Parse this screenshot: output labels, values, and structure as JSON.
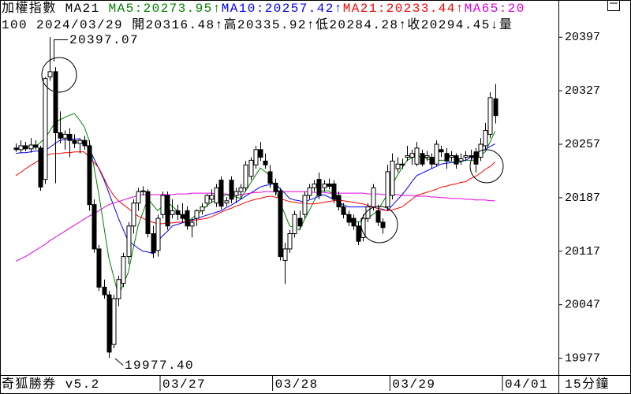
{
  "header": {
    "name": "加權指數",
    "ma_label": "MA21",
    "ma": [
      {
        "label": "MA5:20273.95",
        "arrow": "↑"
      },
      {
        "label": "MA10:20257.42",
        "arrow": "↑"
      },
      {
        "label": "MA21:20233.44",
        "arrow": "↑"
      },
      {
        "label": "MA65:20"
      }
    ],
    "quote": [
      "100",
      "2024/03/29",
      "開20316.48",
      "↑",
      "高20335.92",
      "↑",
      "低20284.28",
      "↑",
      "收20294.45",
      "↓",
      "量"
    ]
  },
  "footer": {
    "brand": "奇狐勝券 v5.2",
    "period": "15分鐘"
  },
  "chart_data": {
    "type": "candlestick",
    "categories": [
      null,
      null,
      null,
      null,
      null,
      null,
      null,
      null,
      null,
      null,
      null,
      null,
      null,
      null,
      null,
      null,
      null,
      null,
      null,
      null,
      null,
      null,
      null,
      null,
      null,
      null,
      null,
      null,
      null,
      null,
      "03/27",
      null,
      null,
      null,
      null,
      null,
      null,
      null,
      null,
      null,
      null,
      null,
      null,
      null,
      null,
      null,
      null,
      null,
      null,
      null,
      null,
      null,
      null,
      "03/28",
      null,
      null,
      null,
      null,
      null,
      null,
      null,
      null,
      null,
      null,
      null,
      null,
      null,
      null,
      null,
      null,
      null,
      null,
      null,
      null,
      null,
      null,
      null,
      "03/29",
      null,
      null,
      null,
      null,
      null,
      null,
      null,
      null,
      null,
      null,
      null,
      null,
      null,
      null,
      null,
      null,
      null,
      null,
      null,
      null,
      null,
      null,
      "04/01"
    ],
    "candles": [
      [
        20252,
        20258,
        20247,
        20250
      ],
      [
        20250,
        20262,
        20245,
        20255
      ],
      [
        20255,
        20260,
        20248,
        20251
      ],
      [
        20251,
        20265,
        20246,
        20256
      ],
      [
        20256,
        20262,
        20250,
        20253
      ],
      [
        20252,
        20255,
        20196,
        20201
      ],
      [
        20211,
        20345,
        20205,
        20343
      ],
      [
        20345,
        20397.07,
        20340,
        20352
      ],
      [
        20352,
        20358,
        20206,
        20272
      ],
      [
        20272,
        20300,
        20258,
        20265
      ],
      [
        20265,
        20275,
        20250,
        20270
      ],
      [
        20270,
        20278,
        20240,
        20262
      ],
      [
        20262,
        20270,
        20252,
        20258
      ],
      [
        20258,
        20265,
        20245,
        20262
      ],
      [
        20262,
        20268,
        20250,
        20255
      ],
      [
        20255,
        20262,
        20170,
        20178
      ],
      [
        20178,
        20185,
        20115,
        20120
      ],
      [
        20120,
        20125,
        20065,
        20070
      ],
      [
        20070,
        20080,
        20055,
        20060
      ],
      [
        20060,
        20065,
        19977.4,
        19985
      ],
      [
        19995,
        20060,
        19990,
        20055
      ],
      [
        20055,
        20085,
        20045,
        20080
      ],
      [
        20075,
        20115,
        20070,
        20110
      ],
      [
        20110,
        20155,
        20100,
        20150
      ],
      [
        20150,
        20185,
        20140,
        20180
      ],
      [
        20180,
        20200,
        20170,
        20195
      ],
      [
        20196,
        20202,
        20190,
        20195
      ],
      [
        20195,
        20198,
        20135,
        20140
      ],
      [
        20140,
        20150,
        20108,
        20115
      ],
      [
        20118,
        20165,
        20110,
        20160
      ],
      [
        20165,
        20195,
        20160,
        20190
      ],
      [
        20190,
        20195,
        20145,
        20150
      ],
      [
        20165,
        20185,
        20160,
        20170
      ],
      [
        20170,
        20178,
        20158,
        20165
      ],
      [
        20165,
        20180,
        20155,
        20160
      ],
      [
        20170,
        20176,
        20145,
        20150
      ],
      [
        20150,
        20160,
        20135,
        20155
      ],
      [
        20160,
        20172,
        20150,
        20170
      ],
      [
        20170,
        20180,
        20165,
        20175
      ],
      [
        20180,
        20192,
        20175,
        20190
      ],
      [
        20185,
        20198,
        20180,
        20190
      ],
      [
        20180,
        20205,
        20175,
        20200
      ],
      [
        20210,
        20215,
        20172,
        20176
      ],
      [
        20180,
        20188,
        20176,
        20183
      ],
      [
        20210,
        20215,
        20180,
        20185
      ],
      [
        20190,
        20200,
        20180,
        20195
      ],
      [
        20195,
        20205,
        20185,
        20200
      ],
      [
        20200,
        20235,
        20195,
        20230
      ],
      [
        20215,
        20240,
        20210,
        20236
      ],
      [
        20230,
        20255,
        20225,
        20250
      ],
      [
        20250,
        20260,
        20235,
        20240
      ],
      [
        20235,
        20245,
        20225,
        20230
      ],
      [
        20221,
        20230,
        20200,
        20206
      ],
      [
        20206,
        20212,
        20190,
        20195
      ],
      [
        20196,
        20200,
        20105,
        20110
      ],
      [
        20105,
        20128,
        20074,
        20120
      ],
      [
        20120,
        20145,
        20115,
        20140
      ],
      [
        20140,
        20170,
        20135,
        20165
      ],
      [
        20160,
        20170,
        20145,
        20150
      ],
      [
        20165,
        20195,
        20160,
        20190
      ],
      [
        20190,
        20205,
        20185,
        20200
      ],
      [
        20200,
        20210,
        20195,
        20205
      ],
      [
        20211,
        20220,
        20185,
        20190
      ],
      [
        20200,
        20210,
        20195,
        20205
      ],
      [
        20205,
        20212,
        20198,
        20202
      ],
      [
        20205,
        20210,
        20180,
        20185
      ],
      [
        20190,
        20195,
        20170,
        20175
      ],
      [
        20175,
        20180,
        20160,
        20165
      ],
      [
        20165,
        20170,
        20150,
        20155
      ],
      [
        20160,
        20165,
        20145,
        20150
      ],
      [
        20150,
        20155,
        20125,
        20130
      ],
      [
        20135,
        20165,
        20130,
        20160
      ],
      [
        20160,
        20180,
        20155,
        20175
      ],
      [
        20175,
        20205,
        20170,
        20200
      ],
      [
        20170,
        20178,
        20150,
        20155
      ],
      [
        20155,
        20160,
        20140,
        20148
      ],
      [
        20175,
        20230,
        20170,
        20221
      ],
      [
        20190,
        20245,
        20185,
        20235
      ],
      [
        20225,
        20240,
        20220,
        20231
      ],
      [
        20231,
        20238,
        20225,
        20230
      ],
      [
        20240,
        20255,
        20235,
        20242
      ],
      [
        20240,
        20250,
        20230,
        20245
      ],
      [
        20231,
        20260,
        20228,
        20252
      ],
      [
        20245,
        20250,
        20228,
        20231
      ],
      [
        20240,
        20248,
        20235,
        20242
      ],
      [
        20240,
        20245,
        20225,
        20231
      ],
      [
        20231,
        20262,
        20228,
        20257
      ],
      [
        20250,
        20255,
        20240,
        20247
      ],
      [
        20245,
        20252,
        20225,
        20235
      ],
      [
        20240,
        20248,
        20235,
        20242
      ],
      [
        20242,
        20245,
        20225,
        20231
      ],
      [
        20235,
        20245,
        20230,
        20238
      ],
      [
        20240,
        20248,
        20235,
        20242
      ],
      [
        20242,
        20250,
        20236,
        20240
      ],
      [
        20247,
        20252,
        20220,
        20231
      ],
      [
        20240,
        20265,
        20235,
        20257
      ],
      [
        20255,
        20285,
        20250,
        20275
      ],
      [
        20270,
        20325,
        20265,
        20318
      ],
      [
        20316.48,
        20335.92,
        20284.28,
        20294.45
      ],
      null,
      null
    ],
    "series": [
      {
        "color": "#008000",
        "values": [
          20252,
          20252,
          20253,
          20253,
          20254,
          20259,
          20265,
          20275,
          20285,
          20289,
          20292,
          20295,
          20297,
          20289,
          20280,
          20262,
          20227,
          20191,
          20150,
          20109,
          20084,
          20059,
          20074,
          20089,
          20120,
          20150,
          20168,
          20186,
          20178,
          20170,
          20176,
          20181,
          20176,
          20170,
          20163,
          20155,
          20160,
          20165,
          20170,
          20176,
          20181,
          20184,
          20188,
          20191,
          20189,
          20188,
          20186,
          20196,
          20206,
          20216,
          20226,
          20221,
          20216,
          20199,
          20181,
          20166,
          20150,
          20148,
          20145,
          20158,
          20170,
          20183,
          20196,
          20196,
          20196,
          20191,
          20186,
          20173,
          20160,
          20158,
          20155,
          20158,
          20160,
          20165,
          20170,
          20181,
          20191,
          20204,
          20216,
          20226,
          20236,
          20239,
          20242,
          20240,
          20238,
          20236,
          20236,
          20236,
          20236,
          20234,
          20231,
          20234,
          20236,
          20236,
          20236,
          20242,
          20247,
          20260,
          20273.95,
          null,
          null
        ]
      },
      {
        "color": "#0000ff",
        "values": [
          20245,
          20246,
          20246,
          20247,
          20248,
          20248,
          20249,
          20253,
          20258,
          20262,
          20263,
          20263,
          20264,
          20264,
          20258,
          20252,
          20238,
          20225,
          20211,
          20194,
          20177,
          20160,
          20145,
          20130,
          20126,
          20121,
          20117,
          20116,
          20114,
          20130,
          20137,
          20143,
          20150,
          20152,
          20154,
          20156,
          20158,
          20160,
          20162,
          20164,
          20166,
          20168,
          20170,
          20174,
          20177,
          20181,
          20185,
          20189,
          20193,
          20197,
          20201,
          20203,
          20204,
          20206,
          20199,
          20193,
          20186,
          20184,
          20183,
          20181,
          20184,
          20186,
          20189,
          20191,
          20188,
          20185,
          20181,
          20178,
          20175,
          20175,
          20175,
          20175,
          20175,
          20175,
          20173,
          20172,
          20170,
          20177,
          20184,
          20191,
          20199,
          20208,
          20216,
          20219,
          20222,
          20225,
          20228,
          20231,
          20232,
          20233,
          20234,
          20235,
          20236,
          20240,
          20243,
          20247,
          20250,
          20254,
          20257.42,
          null,
          null
        ]
      },
      {
        "color": "#ff0000",
        "values": [
          20216,
          20220,
          20225,
          20229,
          20233,
          20237,
          20241,
          20244,
          20245,
          20245,
          20246,
          20246,
          20247,
          20247,
          20247,
          20240,
          20233,
          20226,
          20213,
          20200,
          20190,
          20183,
          20178,
          20173,
          20168,
          20163,
          20160,
          20157,
          20155,
          20153,
          20153,
          20154,
          20154,
          20155,
          20155,
          20156,
          20157,
          20158,
          20159,
          20160,
          20162,
          20165,
          20168,
          20171,
          20173,
          20176,
          20178,
          20181,
          20183,
          20185,
          20186,
          20188,
          20189,
          20188,
          20186,
          20184,
          20182,
          20181,
          20180,
          20180,
          20179,
          20179,
          20180,
          20181,
          20182,
          20183,
          20184,
          20183,
          20182,
          20181,
          20180,
          20179,
          20177,
          20175,
          20173,
          20171,
          20170,
          20171,
          20173,
          20175,
          20180,
          20185,
          20190,
          20192,
          20194,
          20196,
          20198,
          20201,
          20202,
          20204,
          20205,
          20207,
          20208,
          20212,
          20215,
          20219,
          20224,
          20228,
          20233.44,
          null,
          null
        ]
      },
      {
        "color": "#e000e0",
        "values": [
          20104,
          20107,
          20110,
          20114,
          20118,
          20122,
          20126,
          20131,
          20135,
          20139,
          20143,
          20147,
          20151,
          20155,
          20159,
          20163,
          20166,
          20170,
          20174,
          20178,
          20180,
          20182,
          20184,
          20186,
          20188,
          20190,
          20191,
          20191,
          20191,
          20191,
          20191,
          20191,
          20191,
          20192,
          20192,
          20192,
          20193,
          20193,
          20193,
          20193,
          20193,
          20192,
          20192,
          20192,
          20191,
          20191,
          20191,
          20192,
          20193,
          20194,
          20194,
          20195,
          20195,
          20195,
          20195,
          20195,
          20195,
          20195,
          20195,
          20195,
          20195,
          20194,
          20194,
          20194,
          20193,
          20193,
          20193,
          20193,
          20193,
          20193,
          20193,
          20193,
          20192,
          20192,
          20192,
          20191,
          20191,
          20191,
          20191,
          20190,
          20190,
          20190,
          20189,
          20189,
          20189,
          20188,
          20188,
          20187,
          20187,
          20186,
          20186,
          20186,
          20185,
          20185,
          20184,
          20184,
          20184,
          20183,
          20183,
          null,
          null
        ]
      }
    ],
    "up_color": "#ffffff",
    "down_color": "#000000",
    "annotations": [
      "20397.07",
      "19977.40"
    ],
    "ylim": [
      19957,
      20422
    ],
    "yticks": [
      19977,
      20047,
      20117,
      20187,
      20257,
      20327,
      20397
    ]
  }
}
